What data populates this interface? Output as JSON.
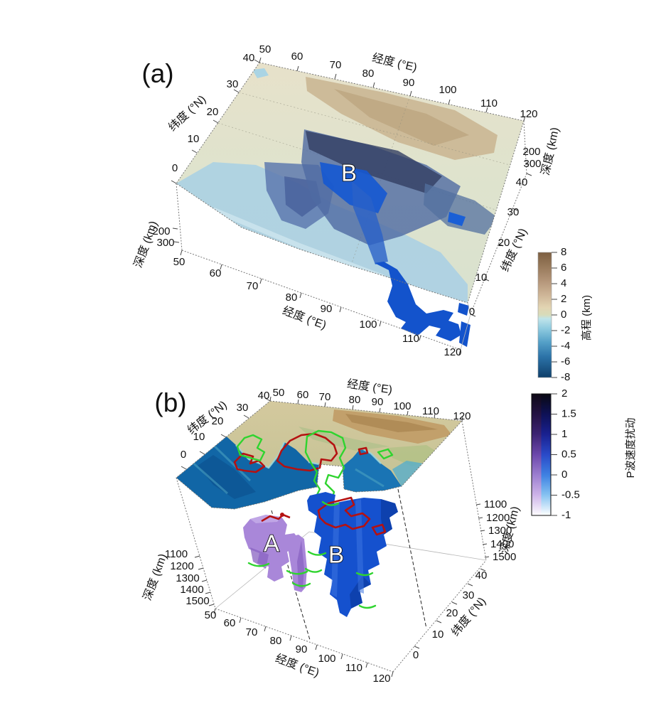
{
  "figure": {
    "panel_a": {
      "label": "(a)",
      "lon_title": "经度 (°E)",
      "lat_title": "纬度 (°N)",
      "depth_title": "深度 (km)",
      "lon_ticks": [
        "50",
        "60",
        "70",
        "80",
        "90",
        "100",
        "110",
        "120"
      ],
      "lat_ticks": [
        "40",
        "30",
        "20",
        "10",
        "0"
      ],
      "depth_ticks": [
        "200",
        "300"
      ],
      "annotation_b": "B",
      "colorbar": {
        "title": "高程 (km)",
        "ticks": [
          "8",
          "6",
          "4",
          "2",
          "0",
          "-2",
          "-4",
          "-6",
          "-8"
        ]
      }
    },
    "panel_b": {
      "label": "(b)",
      "lon_title": "经度 (°E)",
      "lat_title": "纬度 (°N)",
      "depth_title": "深度 (km)",
      "lon_ticks": [
        "50",
        "60",
        "70",
        "80",
        "90",
        "100",
        "110",
        "120"
      ],
      "lat_ticks": [
        "40",
        "30",
        "20",
        "10",
        "0"
      ],
      "depth_ticks": [
        "1100",
        "1200",
        "1300",
        "1400",
        "1500"
      ],
      "annotation_a": "A",
      "annotation_b": "B",
      "colorbar": {
        "title": "P波速度扰动",
        "ticks": [
          "2",
          "1.5",
          "1",
          "0.5",
          "0",
          "-0.5",
          "-1"
        ]
      }
    }
  },
  "chart_data": [
    {
      "type": "3d-surface-map",
      "panel": "(a)",
      "x_axis": {
        "label": "经度 (°E)",
        "range": [
          50,
          120
        ],
        "ticks": [
          50,
          60,
          70,
          80,
          90,
          100,
          110,
          120
        ]
      },
      "y_axis": {
        "label": "纬度 (°N)",
        "range": [
          0,
          40
        ],
        "ticks": [
          40,
          30,
          20,
          10,
          0
        ]
      },
      "z_axis": {
        "label": "深度 (km)",
        "ticks": [
          200,
          300
        ]
      },
      "colorbar": {
        "label": "高程 (km)",
        "range": [
          -8,
          8
        ],
        "ticks": [
          8,
          6,
          4,
          2,
          0,
          -2,
          -4,
          -6,
          -8
        ],
        "top_color": "#7d5f41",
        "zero_color": "#d8dcba",
        "bottom_color": "#0e3f6b"
      },
      "annotations": [
        {
          "text": "B"
        }
      ],
      "content": "topographic map of South/Southeast Asia with semi-transparent subducted slab bodies (blue) beneath surface; slab labeled B extends below map near Sumatra"
    },
    {
      "type": "3d-isosurface",
      "panel": "(b)",
      "x_axis": {
        "label": "经度 (°E)",
        "range": [
          50,
          120
        ],
        "ticks": [
          50,
          60,
          70,
          80,
          90,
          100,
          110,
          120
        ]
      },
      "y_axis": {
        "label": "纬度 (°N)",
        "range": [
          0,
          40
        ],
        "ticks": [
          40,
          30,
          20,
          10,
          0
        ]
      },
      "z_axis": {
        "label": "深度 (km)",
        "ticks": [
          1100,
          1200,
          1300,
          1400,
          1500
        ]
      },
      "colorbar": {
        "label": "P波速度扰动",
        "range": [
          -1,
          2
        ],
        "ticks": [
          2,
          1.5,
          1,
          0.5,
          0,
          -0.5,
          -1
        ],
        "style": "two-column (purple ramp / blue ramp), black at top, white at bottom"
      },
      "annotations": [
        {
          "text": "A",
          "body_color": "#a987d9"
        },
        {
          "text": "B",
          "body_color": "#1551ce"
        }
      ],
      "contour_colors": {
        "red": "#b51111",
        "green": "#2fd42f"
      },
      "content": "topographic surface with red/green outline contours; deep (1100-1500 km) high-velocity bodies A (purple) and B (blue)"
    }
  ],
  "colors": {
    "body_a": "#a987d9",
    "body_b": "#1551ce",
    "contour_red": "#b51111",
    "contour_green": "#2fd42f",
    "slab_bright_blue": "#1353cc"
  }
}
